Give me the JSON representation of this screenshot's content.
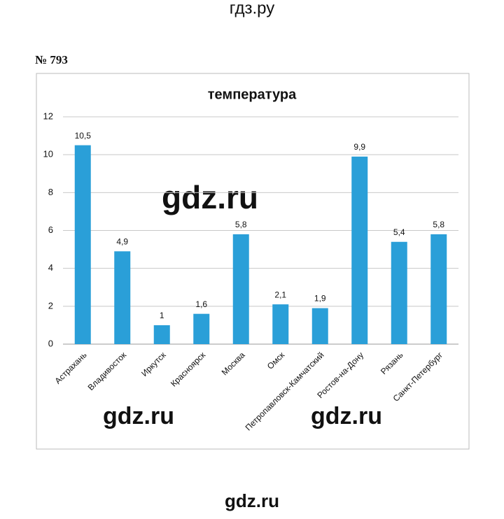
{
  "header": "гдз.ру",
  "problem": "№ 793",
  "watermarks": [
    "gdz.ru",
    "gdz.ru",
    "gdz.ru",
    "gdz.ru"
  ],
  "chart_data": {
    "type": "bar",
    "title": "температура",
    "categories": [
      "Астрахань",
      "Владивосток",
      "Иркутск",
      "Красноярск",
      "Москва",
      "Омск",
      "Петропавловск-Камчатский",
      "Ростов-на-Дону",
      "Рязань",
      "Санкт-Петербург"
    ],
    "values": [
      10.5,
      4.9,
      1,
      1.6,
      5.8,
      2.1,
      1.9,
      9.9,
      5.4,
      5.8
    ],
    "value_labels": [
      "10,5",
      "4,9",
      "1",
      "1,6",
      "5,8",
      "2,1",
      "1,9",
      "9,9",
      "5,4",
      "5,8"
    ],
    "color": "#2a9fd8",
    "ylim": [
      0,
      12
    ],
    "yticks": [
      0,
      2,
      4,
      6,
      8,
      10,
      12
    ],
    "grid": true
  }
}
